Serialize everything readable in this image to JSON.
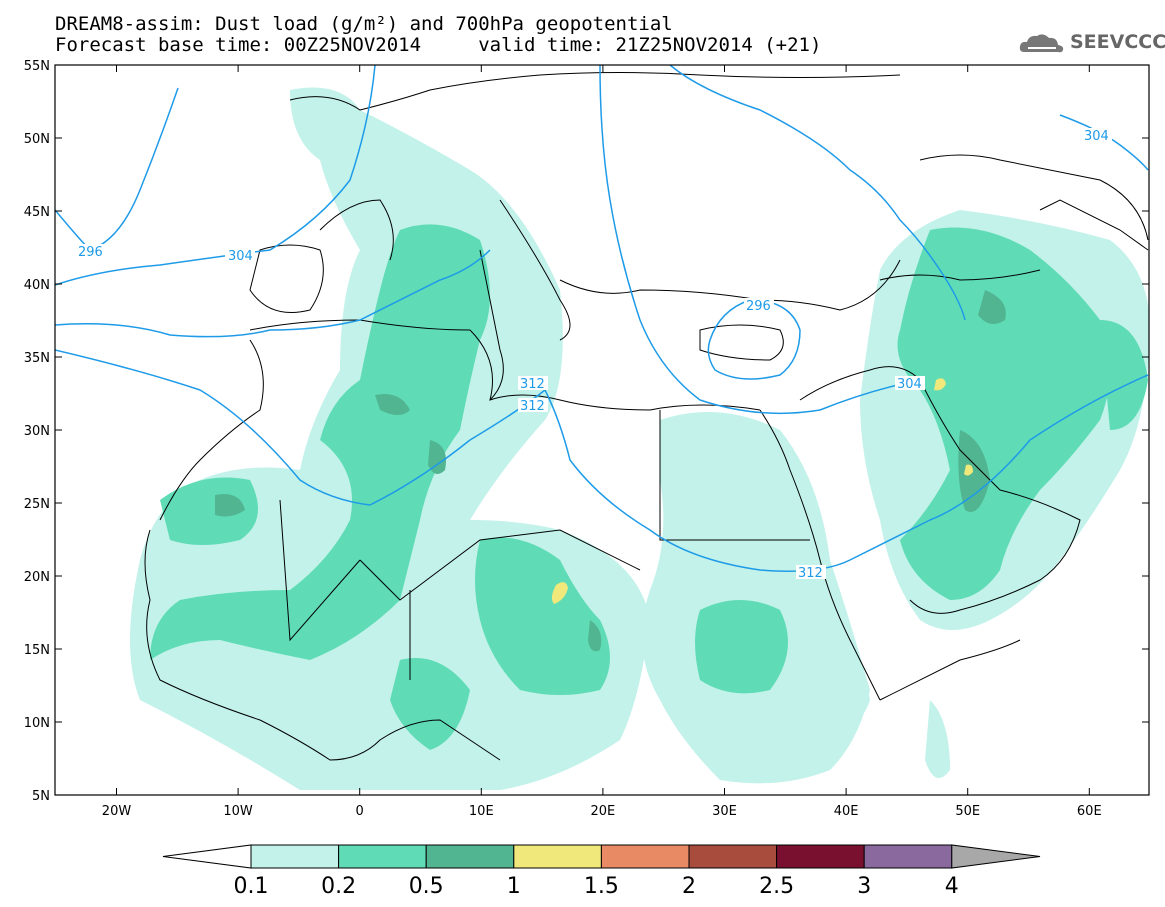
{
  "header": {
    "line1": "DREAM8-assim: Dust load (g/m²) and 700hPa geopotential",
    "line2": "Forecast base time: 00Z25NOV2014     valid time: 21Z25NOV2014 (+21)",
    "logo_text": "SEEVCCC",
    "logo_icon": "cloud-icon"
  },
  "axes": {
    "lat_labels": [
      "55N",
      "50N",
      "45N",
      "40N",
      "35N",
      "30N",
      "25N",
      "20N",
      "15N",
      "10N",
      "5N"
    ],
    "lon_labels": [
      "20W",
      "10W",
      "0",
      "10E",
      "20E",
      "30E",
      "40E",
      "50E",
      "60E"
    ]
  },
  "contours": {
    "color": "#1e9be8",
    "labels": [
      "296",
      "304",
      "296",
      "312",
      "312",
      "304",
      "312",
      "304"
    ]
  },
  "colorbar": {
    "labels": [
      "0.1",
      "0.2",
      "0.5",
      "1",
      "1.5",
      "2",
      "2.5",
      "3",
      "4"
    ],
    "colors": [
      "#c2f2ea",
      "#5fdcb6",
      "#52b592",
      "#f0e87a",
      "#e88a64",
      "#a84c3e",
      "#7a1030",
      "#8a6a9e"
    ],
    "over_color": "#a8a8a8",
    "under_color": "#ffffff"
  },
  "map_colors": {
    "light": "#c2f2ea",
    "medium": "#5fdcb6",
    "dark": "#52b592",
    "yellow": "#f0e87a"
  }
}
